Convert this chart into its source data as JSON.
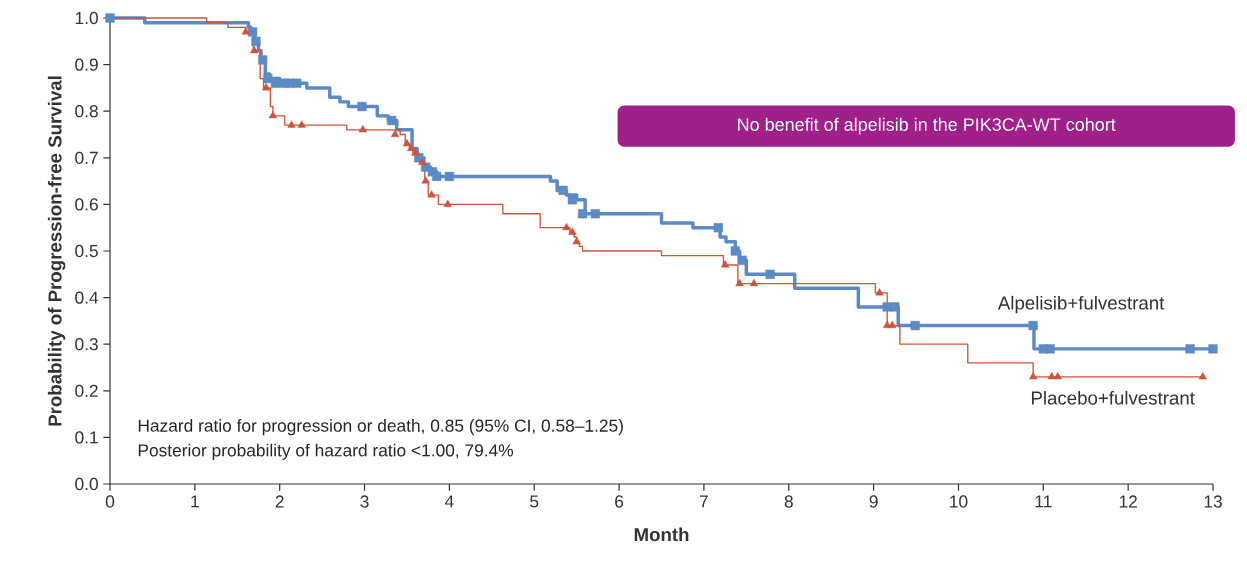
{
  "chart_data": {
    "type": "step",
    "xlabel": "Month",
    "ylabel": "Probability of Progression-free Survival",
    "xlim": [
      0,
      13
    ],
    "ylim": [
      0,
      1.0
    ],
    "xticks": [
      0,
      1,
      2,
      3,
      4,
      5,
      6,
      7,
      8,
      9,
      10,
      11,
      12,
      13
    ],
    "yticks": [
      {
        "value": 0,
        "label": "0.0"
      },
      {
        "value": 0.1,
        "label": "0.1"
      },
      {
        "value": 0.2,
        "label": "0.2"
      },
      {
        "value": 0.3,
        "label": "0.3"
      },
      {
        "value": 0.4,
        "label": "0.4"
      },
      {
        "value": 0.5,
        "label": "0.5"
      },
      {
        "value": 0.6,
        "label": "0.6"
      },
      {
        "value": 0.7,
        "label": "0.7"
      },
      {
        "value": 0.8,
        "label": "0.8"
      },
      {
        "value": 0.9,
        "label": "0.9"
      },
      {
        "value": 1.0,
        "label": "1.0"
      }
    ],
    "annotations": [
      "No benefit of alpelisib in the PIK3CA-WT cohort",
      "Hazard ratio for progression or death, 0.85 (95% CI, 0.58–1.25)",
      "Posterior probability of hazard ratio <1.00, 79.4%"
    ],
    "series": [
      {
        "name": "Alpelisib+fulvestrant",
        "color": "#5b8ac6",
        "x": [
          0,
          0.41,
          1.63,
          1.66,
          1.7,
          1.75,
          1.78,
          1.83,
          1.88,
          2.0,
          2.32,
          2.59,
          2.71,
          2.81,
          3.15,
          3.28,
          3.38,
          3.56,
          3.62,
          3.7,
          3.78,
          3.85,
          5.19,
          5.27,
          5.38,
          5.5,
          5.6,
          6.5,
          6.87,
          7.19,
          7.26,
          7.37,
          7.42,
          7.5,
          8.07,
          8.82,
          9.29,
          10.89,
          13.0
        ],
        "values": [
          1.0,
          0.99,
          0.98,
          0.97,
          0.95,
          0.93,
          0.91,
          0.88,
          0.87,
          0.86,
          0.85,
          0.83,
          0.82,
          0.81,
          0.79,
          0.78,
          0.76,
          0.72,
          0.7,
          0.68,
          0.67,
          0.66,
          0.65,
          0.63,
          0.62,
          0.61,
          0.58,
          0.56,
          0.55,
          0.53,
          0.52,
          0.5,
          0.48,
          0.45,
          0.42,
          0.38,
          0.34,
          0.29,
          0.29
        ]
      },
      {
        "name": "Placebo+fulvestrant",
        "color": "#d0533a",
        "x": [
          0,
          1.14,
          1.39,
          1.6,
          1.69,
          1.77,
          1.81,
          1.89,
          1.92,
          2.06,
          2.79,
          3.42,
          3.48,
          3.53,
          3.57,
          3.65,
          3.71,
          3.75,
          3.87,
          4.63,
          5.07,
          5.42,
          5.47,
          5.5,
          5.53,
          5.57,
          6.5,
          7.23,
          7.4,
          9.02,
          9.16,
          9.31,
          10.11,
          10.88,
          12.88
        ],
        "values": [
          1.0,
          0.99,
          0.98,
          0.97,
          0.93,
          0.87,
          0.85,
          0.81,
          0.79,
          0.77,
          0.76,
          0.75,
          0.73,
          0.72,
          0.71,
          0.69,
          0.65,
          0.62,
          0.6,
          0.58,
          0.55,
          0.54,
          0.53,
          0.52,
          0.51,
          0.5,
          0.49,
          0.47,
          0.43,
          0.41,
          0.34,
          0.3,
          0.26,
          0.23,
          0.23
        ]
      },
      {
        "type": "scatter",
        "marker": "square",
        "color": "#5b8ac6",
        "x": [
          0,
          1.68,
          1.72,
          1.8,
          1.86,
          1.95,
          2.05,
          2.12,
          2.2,
          2.97,
          3.32,
          3.64,
          3.72,
          3.8,
          3.85,
          4.0,
          5.34,
          5.45,
          5.57,
          5.72,
          7.17,
          7.37,
          7.45,
          7.78,
          9.16,
          9.25,
          9.49,
          10.88,
          11.0,
          11.08,
          12.73,
          13.0
        ],
        "values": [
          1.0,
          0.97,
          0.95,
          0.91,
          0.87,
          0.86,
          0.86,
          0.86,
          0.86,
          0.81,
          0.78,
          0.7,
          0.68,
          0.67,
          0.66,
          0.66,
          0.63,
          0.61,
          0.58,
          0.58,
          0.55,
          0.5,
          0.48,
          0.45,
          0.38,
          0.38,
          0.34,
          0.34,
          0.29,
          0.29,
          0.29,
          0.29
        ]
      },
      {
        "type": "scatter",
        "marker": "triangle",
        "color": "#d0533a",
        "x": [
          1.6,
          1.7,
          1.84,
          1.92,
          2.14,
          2.26,
          2.98,
          3.36,
          3.5,
          3.55,
          3.6,
          3.68,
          3.72,
          3.79,
          3.98,
          5.38,
          5.45,
          5.5,
          7.25,
          7.42,
          7.59,
          9.07,
          9.16,
          9.22,
          10.88,
          11.1,
          11.17,
          12.88
        ],
        "values": [
          0.97,
          0.93,
          0.85,
          0.79,
          0.77,
          0.77,
          0.76,
          0.75,
          0.73,
          0.72,
          0.71,
          0.69,
          0.65,
          0.62,
          0.6,
          0.55,
          0.54,
          0.52,
          0.47,
          0.43,
          0.43,
          0.41,
          0.34,
          0.34,
          0.23,
          0.23,
          0.23,
          0.23
        ]
      }
    ]
  }
}
